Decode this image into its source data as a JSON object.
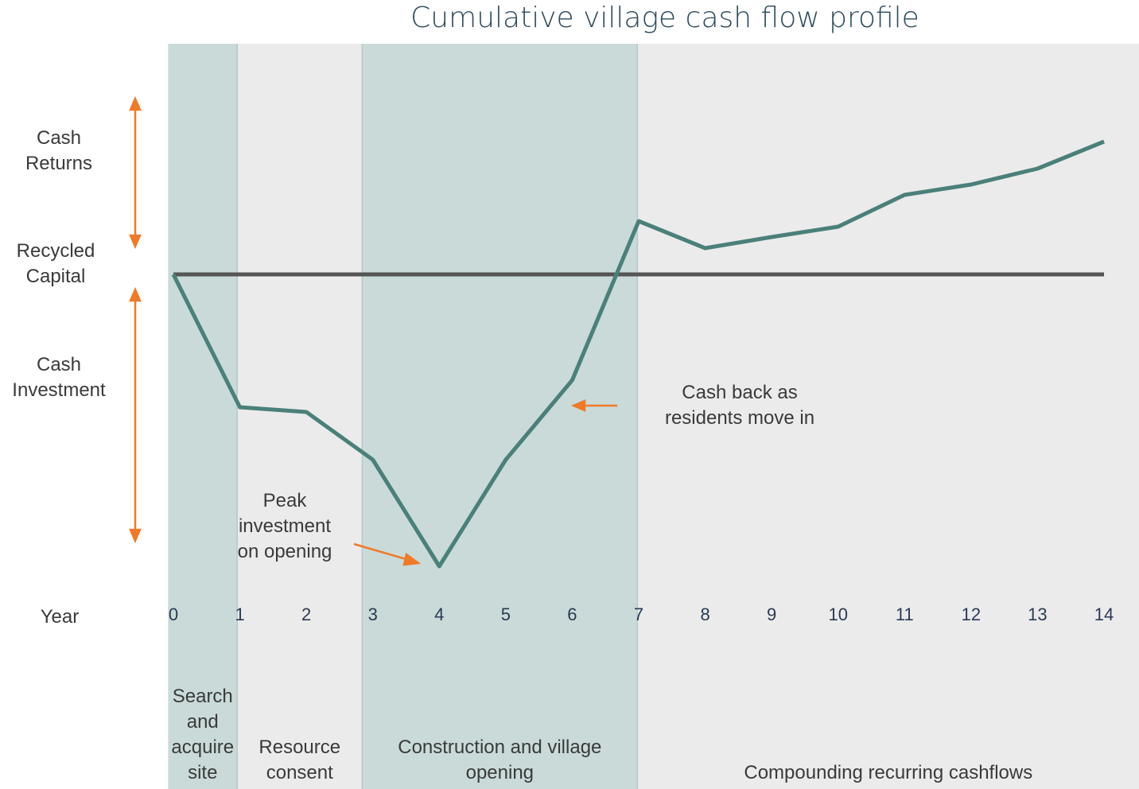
{
  "chart_data": {
    "type": "line",
    "title": "Cumulative village cash flow profile",
    "x_label": "Year",
    "x": [
      0,
      1,
      2,
      3,
      4,
      5,
      6,
      7,
      8,
      9,
      10,
      11,
      12,
      13,
      14
    ],
    "values": [
      0,
      -16.7,
      -17.3,
      -23.3,
      -36.7,
      -23.3,
      -13.3,
      6.7,
      3.3,
      4.7,
      6,
      10,
      11.3,
      13.3,
      16.7
    ],
    "color": "#4a8079",
    "xlim": [
      0,
      14
    ],
    "xticks": [
      0,
      1,
      2,
      3,
      4,
      5,
      6,
      7,
      8,
      9,
      10,
      11,
      12,
      13,
      14
    ],
    "ylim": [
      -40,
      29
    ],
    "reference_line": {
      "value": 0,
      "color": "#555555"
    },
    "y_labels": [
      "Cash Returns",
      "Recycled Capital",
      "Cash Investment"
    ],
    "phases": [
      {
        "label": "Search and acquire site",
        "start": -0.08,
        "end": 0.96,
        "color": "#c9dad9"
      },
      {
        "label": "Resource consent",
        "start": 0.96,
        "end": 2.84,
        "color": "#ebebeb"
      },
      {
        "label": "Construction and village opening",
        "start": 2.84,
        "end": 6.98,
        "color": "#c9dad9"
      },
      {
        "label": "Compounding recurring cashflows",
        "start": 6.98,
        "end": 14.53,
        "color": "#ebebeb"
      }
    ],
    "annotations": [
      "Peak investment on opening",
      "Cash back as residents move in"
    ]
  }
}
